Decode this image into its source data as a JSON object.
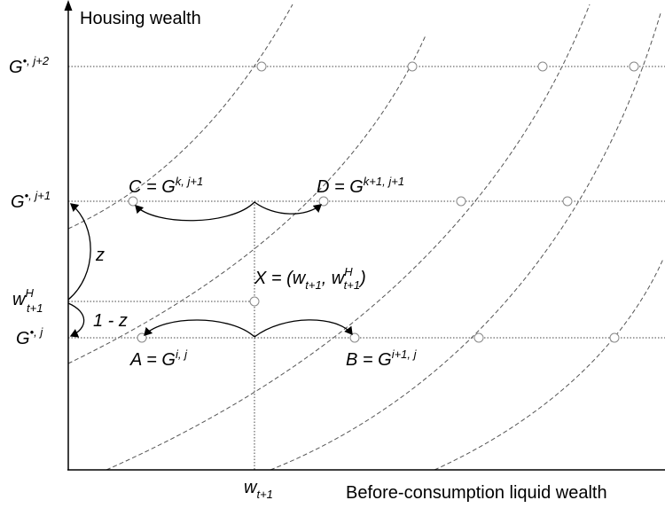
{
  "axes": {
    "y_label": "Housing wealth",
    "x_label": "Before-consumption liquid wealth"
  },
  "y_labels": [
    {
      "base": "G",
      "sup": "•, j+2"
    },
    {
      "base": "G",
      "sup": "•, j+1"
    },
    {
      "base": "w",
      "sup": "H",
      "sub": "t+1"
    },
    {
      "base": "G",
      "sup": "•, j"
    }
  ],
  "x_label_point": {
    "base": "w",
    "sub": "t+1"
  },
  "points": [
    {
      "lhs": "C = G",
      "sup": "k, j+1"
    },
    {
      "lhs": "D = G",
      "sup": "k+1, j+1"
    },
    {
      "lhs": "A = G",
      "sup": "i, j"
    },
    {
      "lhs": "B = G",
      "sup": "i+1, j"
    }
  ],
  "x_point": {
    "lhs": "X = (w",
    "sub1": "t+1",
    "mid": ", w",
    "sup2": "H",
    "sub2": "t+1",
    "end": ")"
  },
  "weights": [
    "z",
    "1 - z"
  ]
}
